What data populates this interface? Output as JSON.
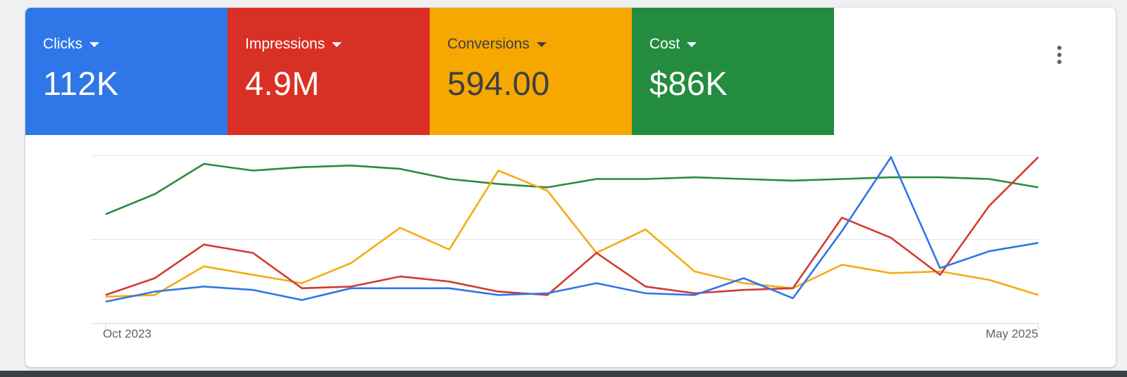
{
  "metrics": [
    {
      "label": "Clicks",
      "value": "112K",
      "color": "#2f76e8",
      "text_color": "#ffffff",
      "icon": "caret-down-icon"
    },
    {
      "label": "Impressions",
      "value": "4.9M",
      "color": "#d93025",
      "text_color": "#ffffff",
      "icon": "caret-down-icon"
    },
    {
      "label": "Conversions",
      "value": "594.00",
      "color": "#f6a800",
      "text_color": "#3c4043",
      "icon": "caret-down-icon"
    },
    {
      "label": "Cost",
      "value": "$86K",
      "color": "#248c3e",
      "text_color": "#ffffff",
      "icon": "caret-down-icon"
    }
  ],
  "more_menu": {
    "icon": "more-vert-icon"
  },
  "chart_data": {
    "type": "line",
    "x_start_label": "Oct 2023",
    "x_end_label": "May 2025",
    "grid": true,
    "gridlines": 3,
    "y_axis_labels": false,
    "ylim": [
      0,
      100
    ],
    "series": [
      {
        "key": "cost",
        "color": "#2a8b3f",
        "values": [
          65,
          77,
          95,
          91,
          93,
          94,
          92,
          86,
          83,
          81,
          86,
          86,
          87,
          86,
          85,
          86,
          87,
          87,
          86,
          81
        ]
      },
      {
        "key": "conversions",
        "color": "#f5ab12",
        "values": [
          16,
          17,
          34,
          29,
          24,
          36,
          57,
          44,
          91,
          79,
          42,
          56,
          31,
          24,
          21,
          35,
          30,
          31,
          26,
          17
        ]
      },
      {
        "key": "impressions",
        "color": "#d23b31",
        "values": [
          17,
          27,
          47,
          42,
          21,
          22,
          28,
          25,
          19,
          17,
          42,
          22,
          18,
          20,
          21,
          63,
          51,
          29,
          70,
          99
        ]
      },
      {
        "key": "clicks",
        "color": "#2f76e8",
        "values": [
          13,
          19,
          22,
          20,
          14,
          21,
          21,
          21,
          17,
          18,
          24,
          18,
          17,
          27,
          15,
          55,
          99,
          33,
          43,
          48
        ]
      }
    ]
  }
}
